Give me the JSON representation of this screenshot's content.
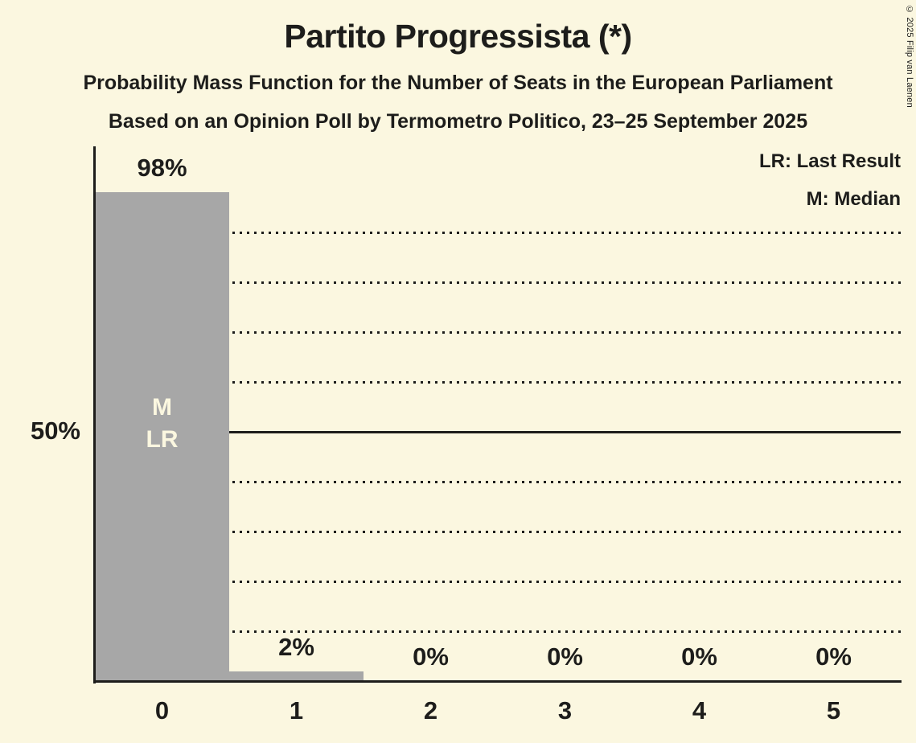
{
  "title": "Partito Progressista (*)",
  "subtitle1": "Probability Mass Function for the Number of Seats in the European Parliament",
  "subtitle2": "Based on an Opinion Poll by Termometro Politico, 23–25 September 2025",
  "legend": {
    "last_result": "LR: Last Result",
    "median": "M: Median"
  },
  "copyright": "© 2025 Filip van Laenen",
  "colors": {
    "background": "#FBF7E0",
    "bar": "#A7A7A7",
    "text": "#1D1D1B",
    "bar_annotation_text": "#FBF7E0",
    "gridline": "#1D1D1B"
  },
  "chart_data": {
    "type": "bar",
    "title": "Partito Progressista (*)",
    "xlabel": "",
    "ylabel": "",
    "categories": [
      "0",
      "1",
      "2",
      "3",
      "4",
      "5"
    ],
    "values": [
      98,
      2,
      0,
      0,
      0,
      0
    ],
    "value_labels": [
      "98%",
      "2%",
      "0%",
      "0%",
      "0%",
      "0%"
    ],
    "ylim": [
      0,
      100
    ],
    "ytick": {
      "value": 50,
      "label": "50%"
    },
    "dotted_gridlines_percent": [
      10,
      20,
      30,
      40,
      60,
      70,
      80,
      90
    ],
    "solid_gridline_percent": 50,
    "grid": true,
    "legend_position": "top-right",
    "bar_annotations": [
      {
        "category_index": 0,
        "lines": [
          "M",
          "LR"
        ]
      }
    ]
  }
}
